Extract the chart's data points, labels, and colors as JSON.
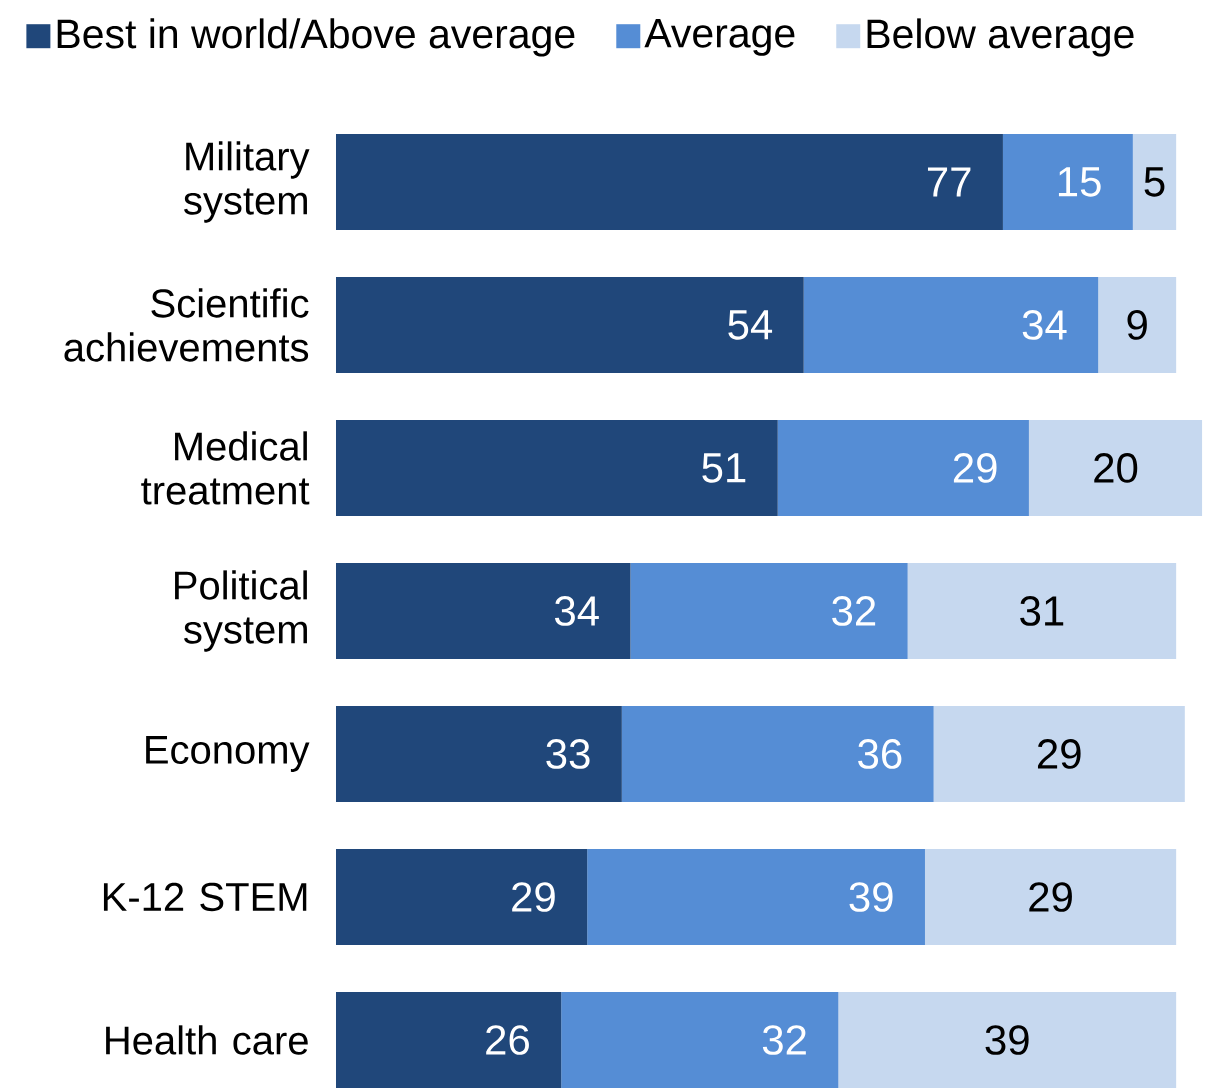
{
  "chart_data": {
    "type": "bar",
    "orientation": "horizontal",
    "stacked": true,
    "categories": [
      "Military system",
      "Scientific achievements",
      "Medical treatment",
      "Political system",
      "Economy",
      "K-12 STEM",
      "Health care"
    ],
    "series": [
      {
        "name": "Best in world/Above average",
        "color": "#20477a",
        "values": [
          77,
          54,
          51,
          34,
          33,
          29,
          26
        ]
      },
      {
        "name": "Average",
        "color": "#558dd5",
        "values": [
          15,
          34,
          29,
          32,
          36,
          39,
          32
        ]
      },
      {
        "name": "Below average",
        "color": "#c6d8ef",
        "values": [
          5,
          9,
          20,
          31,
          29,
          29,
          39
        ]
      }
    ],
    "data_labels": true,
    "legend": "top",
    "tick_labels": "y"
  }
}
